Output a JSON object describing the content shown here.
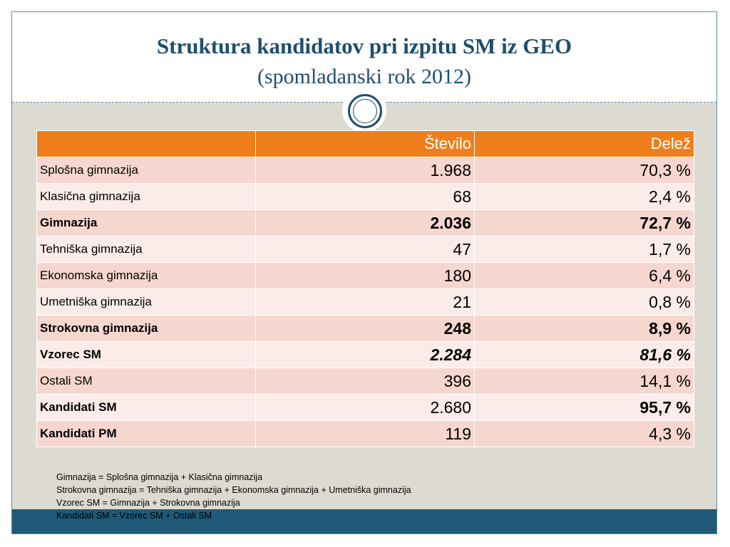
{
  "title": {
    "line1": "Struktura kandidatov pri izpitu SM iz GEO",
    "line2": "(spomladanski rok 2012)"
  },
  "table": {
    "headers": [
      "",
      "Število",
      "Delež"
    ],
    "rows": [
      {
        "label": "Splošna gimnazija",
        "stevilo": "1.968",
        "delez": "70,3 %"
      },
      {
        "label": "Klasična gimnazija",
        "stevilo": "68",
        "delez": "2,4 %"
      },
      {
        "label": "Gimnazija",
        "stevilo": "2.036",
        "delez": "72,7 %"
      },
      {
        "label": "Tehniška gimnazija",
        "stevilo": "47",
        "delez": "1,7 %"
      },
      {
        "label": "Ekonomska gimnazija",
        "stevilo": "180",
        "delez": "6,4 %"
      },
      {
        "label": "Umetniška gimnazija",
        "stevilo": "21",
        "delez": "0,8 %"
      },
      {
        "label": "Strokovna gimnazija",
        "stevilo": "248",
        "delez": "8,9 %"
      },
      {
        "label": "Vzorec SM",
        "stevilo": "2.284",
        "delez": "81,6 %"
      },
      {
        "label": "Ostali SM",
        "stevilo": "396",
        "delez": "14,1 %"
      },
      {
        "label": "Kandidati SM",
        "stevilo": "2.680",
        "delez": "95,7 %"
      },
      {
        "label": "Kandidati PM",
        "stevilo": "119",
        "delez": "4,3 %"
      }
    ]
  },
  "notes": [
    "Gimnazija = Splošna gimnazija + Klasična gimnazija",
    "Strokovna gimnazija = Tehniška gimnazija + Ekonomska gimnazija + Umetniška gimnazija",
    "Vzorec SM = Gimnazija + Strokovna gimnazija",
    "Kandidati SM = Vzorec SM + Ostali SM"
  ],
  "colors": {
    "title": "#1f4e6e",
    "header_bg": "#ee7f1a",
    "row_shade": "#f6d7cf",
    "row_light": "#fbecea",
    "content_bg": "#dddbd1",
    "bottom_bar": "#1f5978"
  },
  "icons": [
    "circle-ornament-icon"
  ]
}
